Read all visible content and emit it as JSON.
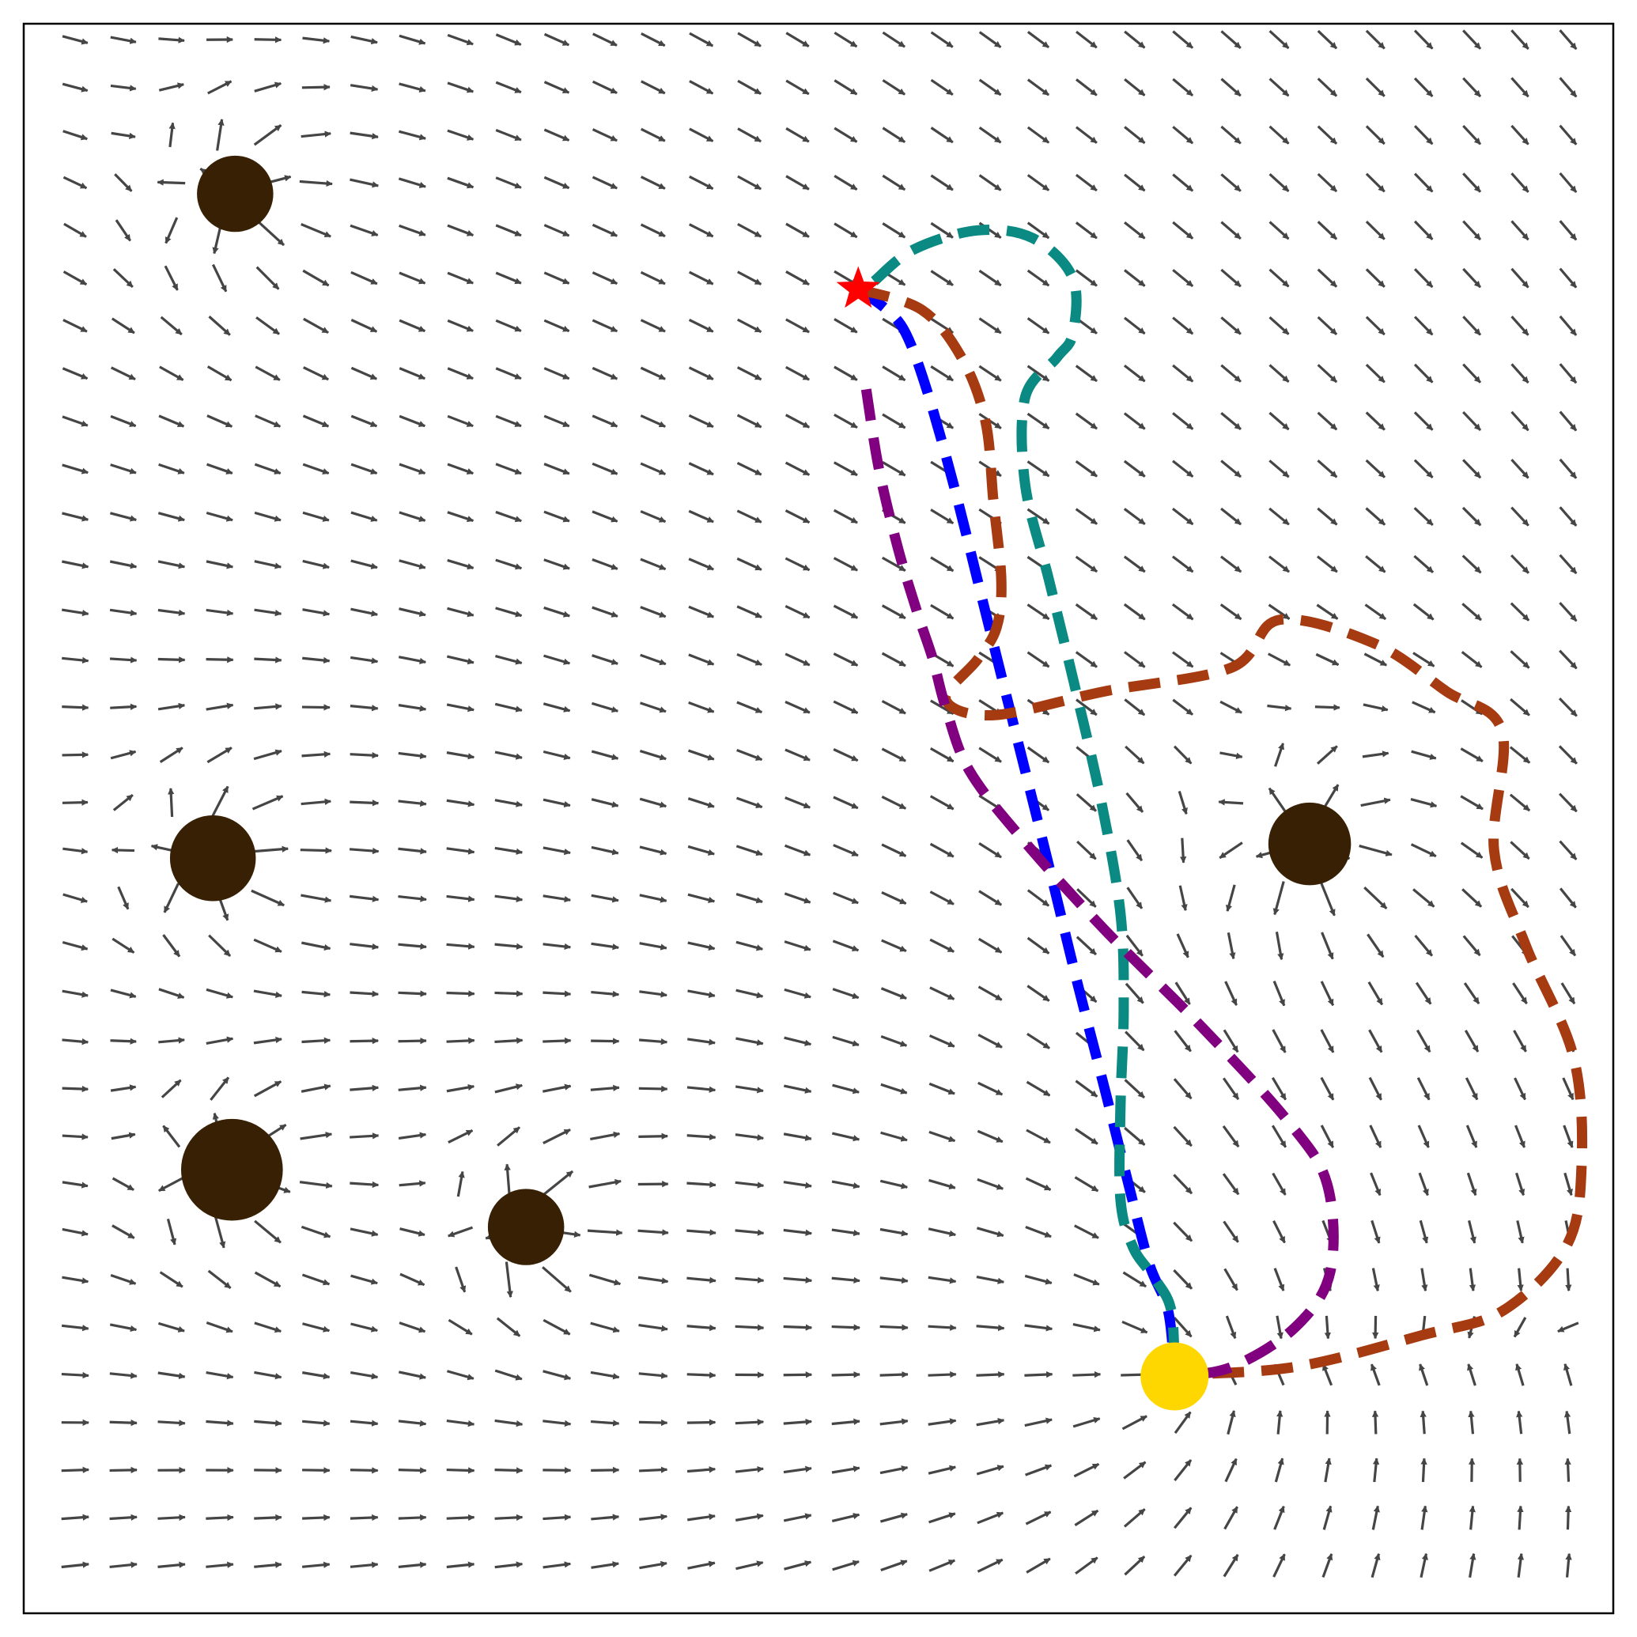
{
  "chart_data": {
    "type": "scatter",
    "title": "",
    "xlabel": "",
    "ylabel": "",
    "xlim": [
      0,
      10
    ],
    "ylim": [
      0,
      10
    ],
    "grid": false,
    "legend": null,
    "ticks_visible": false,
    "start": {
      "x": 5.25,
      "y": 8.33,
      "marker": "star",
      "color": "#ff0000"
    },
    "goal": {
      "x": 7.24,
      "y": 1.49,
      "marker": "circle",
      "color": "#ffd700"
    },
    "obstacles": [
      {
        "x": 1.33,
        "y": 8.93,
        "r": 0.24,
        "color": "#382005"
      },
      {
        "x": 1.19,
        "y": 4.75,
        "r": 0.27,
        "color": "#382005"
      },
      {
        "x": 1.31,
        "y": 2.79,
        "r": 0.32,
        "color": "#382005"
      },
      {
        "x": 3.16,
        "y": 2.43,
        "r": 0.24,
        "color": "#382005"
      },
      {
        "x": 8.09,
        "y": 4.84,
        "r": 0.26,
        "color": "#382005"
      }
    ],
    "series": [
      {
        "color": "#0000ff",
        "style": "dashed",
        "x": [
          5.25,
          5.43,
          5.55,
          5.68,
          5.85,
          6.05,
          6.25,
          6.45,
          6.62,
          6.8,
          6.95,
          7.08,
          7.2,
          7.24
        ],
        "y": [
          8.33,
          8.2,
          8.05,
          7.7,
          7.1,
          6.3,
          5.5,
          4.7,
          4.0,
          3.3,
          2.7,
          2.2,
          1.9,
          1.49
        ]
      },
      {
        "color": "#0a8a82",
        "style": "dashed",
        "x": [
          5.35,
          5.6,
          6.0,
          6.35,
          6.6,
          6.6,
          6.5,
          6.3,
          6.3,
          6.45,
          6.62,
          6.78,
          6.9,
          6.92,
          6.9,
          6.9,
          6.98,
          7.12,
          7.22,
          7.24
        ],
        "y": [
          8.38,
          8.58,
          8.7,
          8.65,
          8.4,
          8.05,
          7.9,
          7.65,
          7.1,
          6.5,
          5.8,
          5.1,
          4.4,
          3.8,
          3.2,
          2.6,
          2.3,
          2.1,
          1.9,
          1.49
        ]
      },
      {
        "color": "#a63a10",
        "style": "dashed",
        "x": [
          5.25,
          5.65,
          5.9,
          6.05,
          6.1,
          6.15,
          6.12,
          6.0,
          5.8,
          6.1,
          6.8,
          7.6,
          7.9,
          8.5,
          8.95,
          9.3,
          9.25,
          9.45,
          9.75,
          9.8,
          9.7,
          9.3,
          8.8,
          8.0,
          7.24
        ],
        "y": [
          8.33,
          8.2,
          7.9,
          7.5,
          7.0,
          6.5,
          6.2,
          6.0,
          5.75,
          5.65,
          5.8,
          5.95,
          6.25,
          6.1,
          5.8,
          5.55,
          4.8,
          4.2,
          3.5,
          2.8,
          2.3,
          1.9,
          1.75,
          1.55,
          1.5
        ]
      },
      {
        "color": "#800080",
        "style": "dashed",
        "x": [
          5.3,
          5.38,
          5.5,
          5.62,
          5.72,
          5.8,
          5.95,
          6.3,
          6.8,
          7.4,
          7.95,
          8.2,
          8.22,
          8.0,
          7.6,
          7.24
        ],
        "y": [
          7.7,
          7.2,
          6.7,
          6.3,
          6.0,
          5.7,
          5.3,
          4.85,
          4.3,
          3.7,
          3.1,
          2.7,
          2.15,
          1.8,
          1.55,
          1.49
        ]
      }
    ]
  }
}
